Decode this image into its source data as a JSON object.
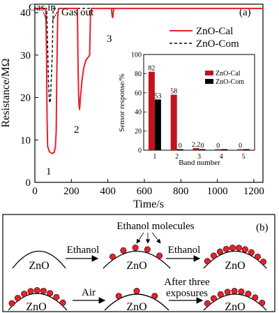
{
  "chart_data": [
    {
      "type": "line",
      "panel_label": "(a)",
      "xlabel": "Time/s",
      "ylabel": "Resistance/MΩ",
      "xlim": [
        0,
        1250
      ],
      "ylim": [
        0,
        42
      ],
      "xticks": [
        0,
        200,
        400,
        600,
        800,
        1000,
        1200
      ],
      "yticks": [
        0,
        10,
        20,
        30,
        40
      ],
      "legend_position": "top-right",
      "annotations": {
        "gas_in": "Gas in",
        "gas_out": "Gas out",
        "cycle_1": "1",
        "cycle_2": "2",
        "cycle_3": "3"
      },
      "series": [
        {
          "name": "ZnO-Cal",
          "color": "#e8202a",
          "style": "solid",
          "x": [
            0,
            60,
            64,
            67,
            70,
            80,
            95,
            105,
            112,
            117,
            120,
            125,
            128,
            132,
            233,
            236,
            239,
            242,
            245,
            250,
            258,
            268,
            280,
            292,
            300,
            305,
            310,
            420,
            422,
            425,
            428,
            431,
            434,
            1250
          ],
          "y": [
            41,
            41,
            30,
            15,
            8.5,
            7.2,
            6.8,
            7.0,
            8.2,
            12,
            25,
            39,
            40.5,
            41,
            41,
            30,
            22,
            18,
            17.2,
            20,
            24,
            27,
            28.8,
            29.5,
            30,
            40,
            41,
            41,
            39.8,
            38.9,
            38.9,
            40.5,
            41,
            41
          ]
        },
        {
          "name": "ZnO-Com",
          "color": "#000000",
          "style": "dashed",
          "x": [
            0,
            65,
            70,
            75,
            80,
            85,
            95,
            100,
            105,
            1250
          ],
          "y": [
            41,
            41,
            32,
            23,
            19,
            18.8,
            30,
            41,
            41,
            41
          ]
        }
      ]
    },
    {
      "type": "bar",
      "xlabel": "Band number",
      "ylabel": "Sensor response/%",
      "categories": [
        "1",
        "2",
        "3",
        "4",
        "5"
      ],
      "ylim": [
        0,
        100
      ],
      "yticks": [
        0,
        20,
        40,
        60,
        80,
        100
      ],
      "legend_position": "top-right",
      "series": [
        {
          "name": "ZnO-Cal",
          "color": "#c0141c",
          "values": [
            82,
            58,
            2.2,
            0,
            0
          ],
          "labels": [
            "82",
            "58",
            "2.2",
            "0",
            "0"
          ]
        },
        {
          "name": "ZnO-Com",
          "color": "#000000",
          "values": [
            53,
            0,
            0,
            0,
            0
          ],
          "labels": [
            "53",
            "0",
            "0",
            "",
            ""
          ]
        }
      ]
    }
  ],
  "schematic": {
    "panel_label": "(b)",
    "material": "ZnO",
    "molecules_label": "Ethanol molecules",
    "arrow_1": "Ethanol",
    "arrow_2": "Ethanol",
    "arrow_3": "Air",
    "arrow_4_line1": "After three",
    "arrow_4_line2": "exposures",
    "molecule_color": "#e8202a"
  }
}
